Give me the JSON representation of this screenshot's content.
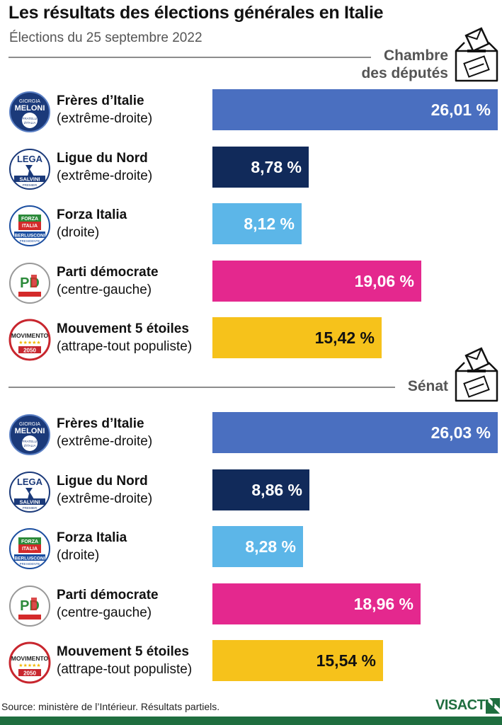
{
  "header": {
    "title": "Les résultats des élections générales en Italie",
    "subtitle": "Élections du 25 septembre 2022"
  },
  "colors": {
    "fdi": "#4a6fc0",
    "lega": "#112a5a",
    "fi": "#5cb6e8",
    "pd": "#e4288e",
    "m5s": "#f6c21b",
    "brand": "#1f6e3f"
  },
  "logos": {
    "fdi": {
      "icon": "fdi-logo-icon",
      "line1": "GIORGIA",
      "line2": "MELONI",
      "line3": "FRATELLI",
      "line4": "d'ITALIA"
    },
    "lega": {
      "icon": "lega-logo-icon",
      "line1": "LEGA",
      "line2": "SALVINI",
      "line3": "PREMIER"
    },
    "fi": {
      "icon": "forza-italia-logo-icon",
      "line1": "FORZA",
      "line2": "ITALIA",
      "line3": "BERLUSCONI",
      "line4": "PRESIDENTE"
    },
    "pd": {
      "icon": "pd-logo-icon",
      "line1": "PD"
    },
    "m5s": {
      "icon": "m5s-logo-icon",
      "line1": "MOVIMENTO",
      "line2": "2050"
    }
  },
  "chart_data": [
    {
      "type": "bar",
      "title": "Chambre des députés",
      "categories": [
        "Frères d’Italie",
        "Ligue du Nord",
        "Forza Italia",
        "Parti démocrate",
        "Mouvement 5 étoiles"
      ],
      "orientations": [
        "(extrême-droite)",
        "(extrême-droite)",
        "(droite)",
        "(centre-gauche)",
        "(attrape-tout populiste)"
      ],
      "values": [
        26.01,
        8.78,
        8.12,
        19.06,
        15.42
      ],
      "labels": [
        "26,01 %",
        "8,78 %",
        "8,12 %",
        "19,06 %",
        "15,42 %"
      ],
      "keys": [
        "fdi",
        "lega",
        "fi",
        "pd",
        "m5s"
      ],
      "xlim": [
        0,
        26.03
      ],
      "xlabel": "",
      "ylabel": ""
    },
    {
      "type": "bar",
      "title": "Sénat",
      "categories": [
        "Frères d’Italie",
        "Ligue du Nord",
        "Forza Italia",
        "Parti démocrate",
        "Mouvement 5 étoiles"
      ],
      "orientations": [
        "(extrême-droite)",
        "(extrême-droite)",
        "(droite)",
        "(centre-gauche)",
        "(attrape-tout populiste)"
      ],
      "values": [
        26.03,
        8.86,
        8.28,
        18.96,
        15.54
      ],
      "labels": [
        "26,03 %",
        "8,86 %",
        "8,28 %",
        "18,96 %",
        "15,54 %"
      ],
      "keys": [
        "fdi",
        "lega",
        "fi",
        "pd",
        "m5s"
      ],
      "xlim": [
        0,
        26.03
      ],
      "xlabel": "",
      "ylabel": ""
    }
  ],
  "sections": {
    "chambre": {
      "line1": "Chambre",
      "line2": "des députés",
      "icon": "ballot-box-icon"
    },
    "senat": {
      "label": "Sénat",
      "icon": "ballot-box-icon"
    }
  },
  "footer": {
    "source": "Source: ministère de l’Intérieur. Résultats partiels.",
    "brand": "VISACTU"
  }
}
